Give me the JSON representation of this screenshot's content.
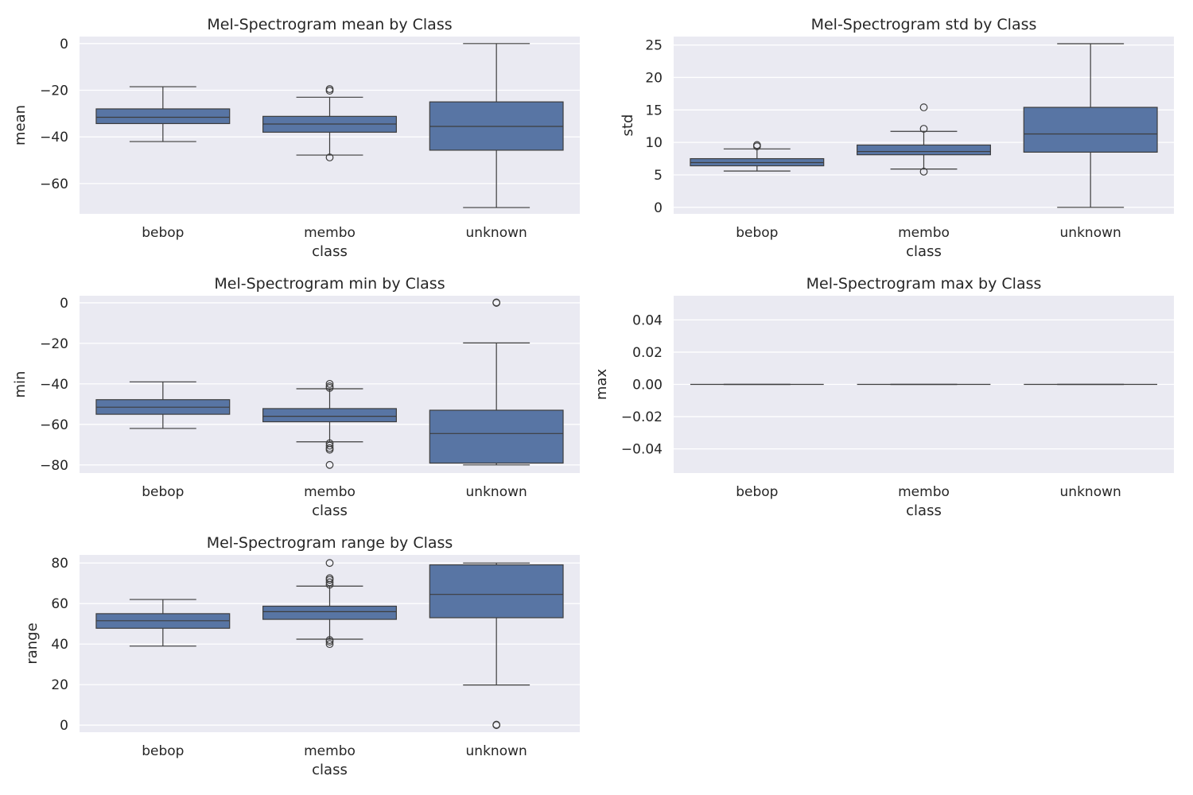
{
  "chart_data": [
    {
      "type": "box",
      "title": "Mel-Spectrogram mean by Class",
      "xlabel": "class",
      "ylabel": "mean",
      "categories": [
        "bebop",
        "membo",
        "unknown"
      ],
      "ylim": [
        -73,
        3
      ],
      "yticks": [
        0,
        -20,
        -40,
        -60
      ],
      "ytick_labels": [
        "0",
        "−20",
        "−40",
        "−60"
      ],
      "boxes": [
        {
          "whisker_low": -42,
          "q1": -34.3,
          "median": -31.6,
          "q3": -28,
          "whisker_high": -18.5,
          "fliers": []
        },
        {
          "whisker_low": -47.8,
          "q1": -38,
          "median": -34.5,
          "q3": -31.2,
          "whisker_high": -23,
          "fliers": [
            -19.5,
            -20.2,
            -48.8
          ]
        },
        {
          "whisker_low": -70.3,
          "q1": -45.7,
          "median": -35.5,
          "q3": -25,
          "whisker_high": 0,
          "fliers": []
        }
      ]
    },
    {
      "type": "box",
      "title": "Mel-Spectrogram std by Class",
      "xlabel": "class",
      "ylabel": "std",
      "categories": [
        "bebop",
        "membo",
        "unknown"
      ],
      "ylim": [
        -1,
        26.3
      ],
      "yticks": [
        0,
        5,
        10,
        15,
        20,
        25
      ],
      "ytick_labels": [
        "0",
        "5",
        "10",
        "15",
        "20",
        "25"
      ],
      "boxes": [
        {
          "whisker_low": 5.6,
          "q1": 6.4,
          "median": 6.9,
          "q3": 7.5,
          "whisker_high": 9,
          "fliers": [
            9.4,
            9.6
          ]
        },
        {
          "whisker_low": 5.9,
          "q1": 8.1,
          "median": 8.6,
          "q3": 9.6,
          "whisker_high": 11.7,
          "fliers": [
            12.1,
            15.4,
            5.5
          ]
        },
        {
          "whisker_low": 0,
          "q1": 8.5,
          "median": 11.3,
          "q3": 15.4,
          "whisker_high": 25.2,
          "fliers": []
        }
      ]
    },
    {
      "type": "box",
      "title": "Mel-Spectrogram min by Class",
      "xlabel": "class",
      "ylabel": "min",
      "categories": [
        "bebop",
        "membo",
        "unknown"
      ],
      "ylim": [
        -84,
        3.5
      ],
      "yticks": [
        0,
        -20,
        -40,
        -60,
        -80
      ],
      "ytick_labels": [
        "0",
        "−20",
        "−40",
        "−60",
        "−80"
      ],
      "boxes": [
        {
          "whisker_low": -62,
          "q1": -55,
          "median": -51.5,
          "q3": -47.8,
          "whisker_high": -39,
          "fliers": []
        },
        {
          "whisker_low": -68.6,
          "q1": -58.7,
          "median": -56,
          "q3": -52.2,
          "whisker_high": -42.4,
          "fliers": [
            -40,
            -41.2,
            -42,
            -69.3,
            -70.5,
            -71.7,
            -72.5,
            -80
          ]
        },
        {
          "whisker_low": -80,
          "q1": -79.1,
          "median": -64.5,
          "q3": -53,
          "whisker_high": -19.8,
          "fliers": [
            0,
            0.2
          ]
        }
      ]
    },
    {
      "type": "box",
      "title": "Mel-Spectrogram max by Class",
      "xlabel": "class",
      "ylabel": "max",
      "categories": [
        "bebop",
        "membo",
        "unknown"
      ],
      "ylim": [
        -0.055,
        0.055
      ],
      "yticks": [
        0.04,
        0.02,
        0,
        -0.02,
        -0.04
      ],
      "ytick_labels": [
        "0.04",
        "0.02",
        "0.00",
        "−0.02",
        "−0.04"
      ],
      "boxes": [
        {
          "whisker_low": 0,
          "q1": 0,
          "median": 0,
          "q3": 0,
          "whisker_high": 0,
          "fliers": []
        },
        {
          "whisker_low": 0,
          "q1": 0,
          "median": 0,
          "q3": 0,
          "whisker_high": 0,
          "fliers": []
        },
        {
          "whisker_low": 0,
          "q1": 0,
          "median": 0,
          "q3": 0,
          "whisker_high": 0,
          "fliers": []
        }
      ]
    },
    {
      "type": "box",
      "title": "Mel-Spectrogram range by Class",
      "xlabel": "class",
      "ylabel": "range",
      "categories": [
        "bebop",
        "membo",
        "unknown"
      ],
      "ylim": [
        -3.5,
        84
      ],
      "yticks": [
        0,
        20,
        40,
        60,
        80
      ],
      "ytick_labels": [
        "0",
        "20",
        "40",
        "60",
        "80"
      ],
      "boxes": [
        {
          "whisker_low": 39,
          "q1": 47.8,
          "median": 51.5,
          "q3": 55,
          "whisker_high": 62,
          "fliers": []
        },
        {
          "whisker_low": 42.4,
          "q1": 52.2,
          "median": 56,
          "q3": 58.7,
          "whisker_high": 68.6,
          "fliers": [
            69.3,
            70.5,
            71.7,
            72.5,
            80,
            42,
            41.2,
            40
          ]
        },
        {
          "whisker_low": 19.8,
          "q1": 53,
          "median": 64.5,
          "q3": 79.1,
          "whisker_high": 80,
          "fliers": [
            0,
            0.2
          ]
        }
      ]
    }
  ]
}
